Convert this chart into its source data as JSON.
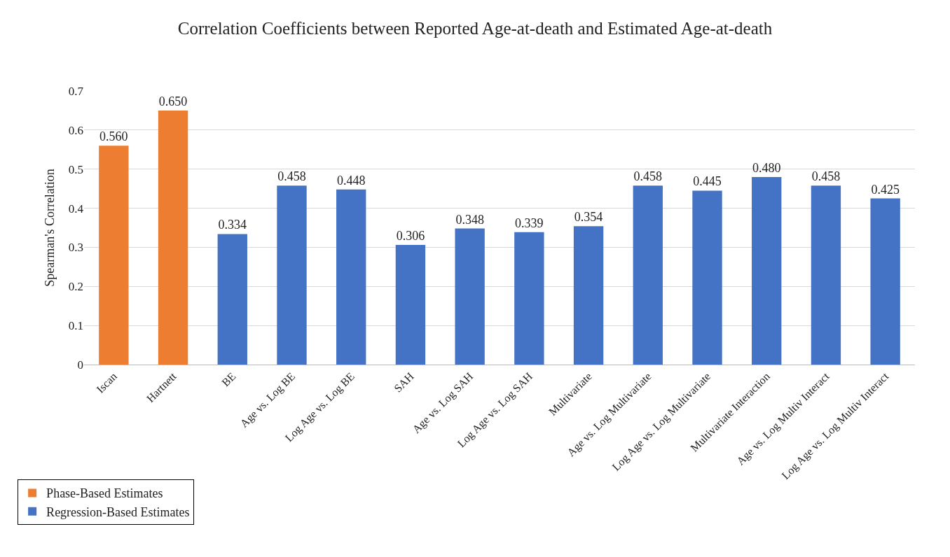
{
  "chart_data": {
    "type": "bar",
    "title": "Correlation Coefficients between Reported Age-at-death and Estimated Age-at-death",
    "ylabel": "Spearman's Correlation",
    "categories": [
      "Iscan",
      "Hartnett",
      "BE",
      "Age vs. Log BE",
      "Log Age vs. Log BE",
      "SAH",
      "Age vs. Log SAH",
      "Log Age vs. Log SAH",
      "Multivariate",
      "Age vs. Log Multivariate",
      "Log Age vs. Log Multivariate",
      "Multivariate Interaction",
      "Age vs. Log Multiv Interact",
      "Log Age vs. Log Multiv Interact"
    ],
    "series": [
      {
        "name": "Phase-Based Estimates",
        "color": "#ed7d31",
        "values": [
          0.56,
          0.65,
          null,
          null,
          null,
          null,
          null,
          null,
          null,
          null,
          null,
          null,
          null,
          null
        ],
        "value_labels": [
          "0.560",
          "0.650",
          null,
          null,
          null,
          null,
          null,
          null,
          null,
          null,
          null,
          null,
          null,
          null
        ]
      },
      {
        "name": "Regression-Based Estimates",
        "color": "#4472c4",
        "values": [
          null,
          null,
          0.334,
          0.458,
          0.448,
          0.306,
          0.348,
          0.339,
          0.354,
          0.458,
          0.445,
          0.48,
          0.458,
          0.425
        ],
        "value_labels": [
          null,
          null,
          "0.334",
          "0.458",
          "0.448",
          "0.306",
          "0.348",
          "0.339",
          "0.354",
          "0.458",
          "0.445",
          "0.480",
          "0.458",
          "0.425"
        ]
      }
    ],
    "ylim": [
      0,
      0.7
    ],
    "yticks": [
      0,
      0.1,
      0.2,
      0.3,
      0.4,
      0.5,
      0.6,
      0.7
    ],
    "grid": "y",
    "legend": "bottom left"
  }
}
